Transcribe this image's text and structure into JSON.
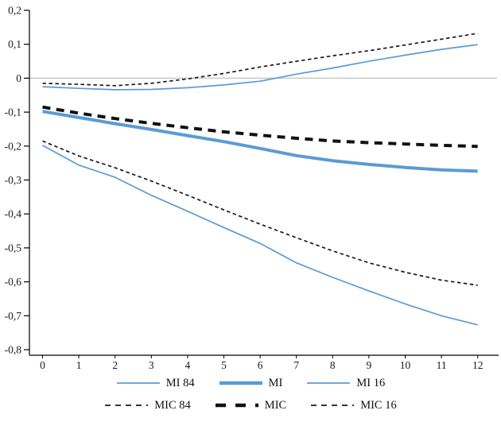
{
  "chart_data": {
    "type": "line",
    "title": "",
    "xlabel": "",
    "ylabel": "",
    "x": [
      0,
      1,
      2,
      3,
      4,
      5,
      6,
      7,
      8,
      9,
      10,
      11,
      12
    ],
    "x_tick_labels": [
      "0",
      "1",
      "2",
      "3",
      "4",
      "5",
      "6",
      "7",
      "8",
      "9",
      "10",
      "11",
      "12"
    ],
    "ylim": [
      -0.8,
      0.2
    ],
    "y_tick_values": [
      0.2,
      0.1,
      0,
      -0.1,
      -0.2,
      -0.3,
      -0.4,
      -0.5,
      -0.6,
      -0.7,
      -0.8
    ],
    "y_tick_labels": [
      "0,2",
      "0,1",
      "0",
      "-0,1",
      "-0,2",
      "-0,3",
      "-0,4",
      "-0,5",
      "-0,6",
      "-0,7",
      "-0,8"
    ],
    "grid": "horizontal-zero-line-only",
    "zero_line_color": "#c9c9c9",
    "axis_color": "#000000",
    "accent_blue": "#5b9bd5",
    "line_black": "#111111",
    "legend_position": "bottom",
    "legend_rows": [
      [
        "MI 84",
        "MI",
        "MI 16"
      ],
      [
        "MIC 84",
        "MIC",
        "MIC 16"
      ]
    ],
    "series": [
      {
        "name": "MI 84",
        "color": "#5b9bd5",
        "width": 1.7,
        "dash": null,
        "legend_dash": null,
        "values": [
          -0.025,
          -0.03,
          -0.034,
          -0.033,
          -0.028,
          -0.02,
          -0.009,
          0.012,
          0.03,
          0.05,
          0.068,
          0.085,
          0.099
        ]
      },
      {
        "name": "MI",
        "color": "#5b9bd5",
        "width": 4,
        "dash": null,
        "legend_dash": null,
        "values": [
          -0.098,
          -0.116,
          -0.134,
          -0.151,
          -0.169,
          -0.187,
          -0.207,
          -0.228,
          -0.243,
          -0.254,
          -0.263,
          -0.27,
          -0.274
        ]
      },
      {
        "name": "MI 16",
        "color": "#5b9bd5",
        "width": 1.7,
        "dash": null,
        "legend_dash": null,
        "values": [
          -0.198,
          -0.256,
          -0.292,
          -0.345,
          -0.392,
          -0.44,
          -0.487,
          -0.544,
          -0.587,
          -0.627,
          -0.665,
          -0.7,
          -0.727
        ]
      },
      {
        "name": "MIC 84",
        "color": "#1a1a1a",
        "width": 1.7,
        "dash": "4.5 3.5",
        "legend_dash": "7 6",
        "values": [
          -0.015,
          -0.018,
          -0.022,
          -0.015,
          -0.002,
          0.014,
          0.033,
          0.05,
          0.066,
          0.081,
          0.098,
          0.115,
          0.132
        ]
      },
      {
        "name": "MIC",
        "color": "#111111",
        "width": 4,
        "dash": "10 7.5",
        "legend_dash": "13 12",
        "values": [
          -0.085,
          -0.103,
          -0.119,
          -0.133,
          -0.146,
          -0.158,
          -0.168,
          -0.177,
          -0.185,
          -0.19,
          -0.194,
          -0.198,
          -0.201
        ]
      },
      {
        "name": "MIC 16",
        "color": "#1a1a1a",
        "width": 1.7,
        "dash": "4.5 3.5",
        "legend_dash": "7 6",
        "values": [
          -0.185,
          -0.229,
          -0.264,
          -0.303,
          -0.345,
          -0.388,
          -0.43,
          -0.47,
          -0.509,
          -0.544,
          -0.572,
          -0.595,
          -0.61
        ]
      }
    ]
  }
}
